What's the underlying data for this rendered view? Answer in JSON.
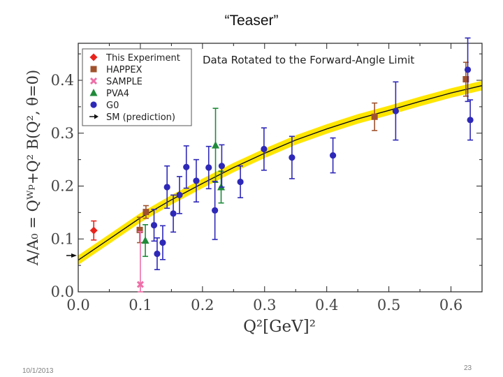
{
  "slide": {
    "title": "“Teaser”",
    "date": "10/1/2013",
    "page_number": "23"
  },
  "chart_data": {
    "type": "scatter",
    "annotation": "Data Rotated to the Forward-Angle Limit",
    "xlabel": "Q²[GeV]²",
    "ylabel": "A/A₀ = Qᵂᵖ+Q² B(Q², θ=0)",
    "xlim": [
      0.0,
      0.65
    ],
    "ylim": [
      0.0,
      0.47
    ],
    "xticks": [
      0.0,
      0.1,
      0.2,
      0.3,
      0.4,
      0.5,
      0.6
    ],
    "xtick_labels": [
      "0.0",
      "0.1",
      "0.2",
      "0.3",
      "0.4",
      "0.5",
      "0.6"
    ],
    "yticks": [
      0.0,
      0.1,
      0.2,
      0.3,
      0.4
    ],
    "ytick_labels": [
      "0.0",
      "0.1",
      "0.2",
      "0.3",
      "0.4"
    ],
    "grid": false,
    "legend_position": "top-left",
    "sm_prediction_arrow_y": 0.064,
    "fit_curve": {
      "x": [
        0.0,
        0.05,
        0.1,
        0.15,
        0.2,
        0.25,
        0.3,
        0.35,
        0.4,
        0.45,
        0.5,
        0.55,
        0.6,
        0.65
      ],
      "y": [
        0.06,
        0.1,
        0.14,
        0.174,
        0.205,
        0.235,
        0.262,
        0.287,
        0.308,
        0.327,
        0.343,
        0.36,
        0.376,
        0.39
      ],
      "band_halfwidth": 0.009,
      "band_color": "#ffe600",
      "line_color": "#111111"
    },
    "series": [
      {
        "name": "This Experiment",
        "marker": "diamond",
        "color": "#e8231c",
        "points": [
          {
            "x": 0.025,
            "y": 0.116,
            "err": 0.018
          }
        ]
      },
      {
        "name": "HAPPEX",
        "marker": "square",
        "color": "#a0522d",
        "points": [
          {
            "x": 0.099,
            "y": 0.117,
            "err": 0.024
          },
          {
            "x": 0.109,
            "y": 0.151,
            "err": 0.012
          },
          {
            "x": 0.477,
            "y": 0.331,
            "err": 0.026
          },
          {
            "x": 0.624,
            "y": 0.402,
            "err": 0.032
          }
        ]
      },
      {
        "name": "SAMPLE",
        "marker": "cross",
        "color": "#ee6fa8",
        "points": [
          {
            "x": 0.1,
            "y": 0.014,
            "err": 0.1
          }
        ]
      },
      {
        "name": "PVA4",
        "marker": "triangle",
        "color": "#1f8a3a",
        "points": [
          {
            "x": 0.108,
            "y": 0.097,
            "err": 0.03
          },
          {
            "x": 0.221,
            "y": 0.277,
            "err": 0.07
          },
          {
            "x": 0.23,
            "y": 0.198,
            "err": 0.03
          }
        ]
      },
      {
        "name": "G0",
        "marker": "circle",
        "color": "#2e28b8",
        "points": [
          {
            "x": 0.122,
            "y": 0.126,
            "err": 0.03
          },
          {
            "x": 0.127,
            "y": 0.072,
            "err": 0.03
          },
          {
            "x": 0.136,
            "y": 0.093,
            "err": 0.032
          },
          {
            "x": 0.143,
            "y": 0.198,
            "err": 0.04
          },
          {
            "x": 0.153,
            "y": 0.148,
            "err": 0.035
          },
          {
            "x": 0.163,
            "y": 0.183,
            "err": 0.035
          },
          {
            "x": 0.174,
            "y": 0.236,
            "err": 0.04
          },
          {
            "x": 0.19,
            "y": 0.21,
            "err": 0.04
          },
          {
            "x": 0.21,
            "y": 0.235,
            "err": 0.04
          },
          {
            "x": 0.22,
            "y": 0.154,
            "err": 0.055
          },
          {
            "x": 0.231,
            "y": 0.238,
            "err": 0.04
          },
          {
            "x": 0.261,
            "y": 0.208,
            "err": 0.03
          },
          {
            "x": 0.299,
            "y": 0.27,
            "err": 0.04
          },
          {
            "x": 0.344,
            "y": 0.254,
            "err": 0.04
          },
          {
            "x": 0.41,
            "y": 0.258,
            "err": 0.033
          },
          {
            "x": 0.511,
            "y": 0.342,
            "err": 0.055
          },
          {
            "x": 0.627,
            "y": 0.42,
            "err": 0.06
          },
          {
            "x": 0.631,
            "y": 0.325,
            "err": 0.038
          }
        ]
      }
    ],
    "legend": [
      {
        "label": "This Experiment",
        "marker": "diamond",
        "color": "#e8231c"
      },
      {
        "label": "HAPPEX",
        "marker": "square",
        "color": "#a0522d"
      },
      {
        "label": "SAMPLE",
        "marker": "cross",
        "color": "#ee6fa8"
      },
      {
        "label": "PVA4",
        "marker": "triangle",
        "color": "#1f8a3a"
      },
      {
        "label": "G0",
        "marker": "circle",
        "color": "#2e28b8"
      },
      {
        "label": "SM (prediction)",
        "marker": "arrow",
        "color": "#111111"
      }
    ]
  }
}
